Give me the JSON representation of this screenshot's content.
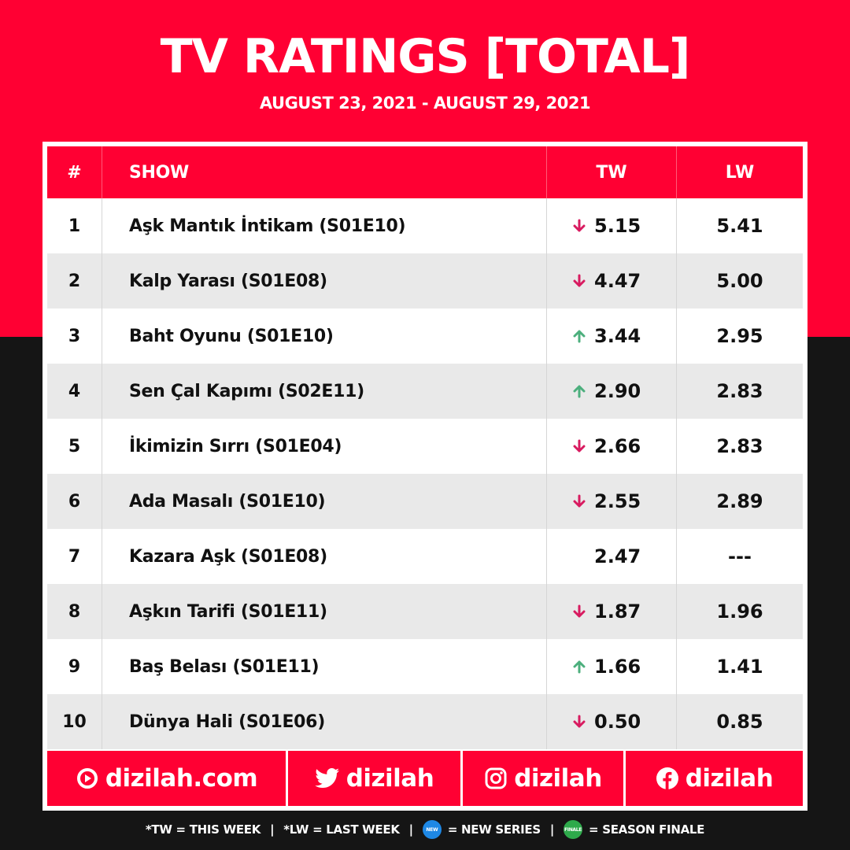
{
  "header": {
    "title": "TV RATINGS [TOTAL]",
    "subtitle": "AUGUST 23, 2021 - AUGUST 29, 2021"
  },
  "table": {
    "columns": {
      "num": "#",
      "show": "SHOW",
      "tw": "TW",
      "lw": "LW"
    },
    "rows": [
      {
        "rank": "1",
        "show": "Aşk Mantık İntikam (S01E10)",
        "trend": "down",
        "tw": "5.15",
        "lw": "5.41"
      },
      {
        "rank": "2",
        "show": "Kalp Yarası (S01E08)",
        "trend": "down",
        "tw": "4.47",
        "lw": "5.00"
      },
      {
        "rank": "3",
        "show": "Baht Oyunu (S01E10)",
        "trend": "up",
        "tw": "3.44",
        "lw": "2.95"
      },
      {
        "rank": "4",
        "show": "Sen Çal Kapımı (S02E11)",
        "trend": "up",
        "tw": "2.90",
        "lw": "2.83"
      },
      {
        "rank": "5",
        "show": "İkimizin Sırrı (S01E04)",
        "trend": "down",
        "tw": "2.66",
        "lw": "2.83"
      },
      {
        "rank": "6",
        "show": "Ada Masalı (S01E10)",
        "trend": "down",
        "tw": "2.55",
        "lw": "2.89"
      },
      {
        "rank": "7",
        "show": "Kazara Aşk (S01E08)",
        "trend": "none",
        "tw": "2.47",
        "lw": "---"
      },
      {
        "rank": "8",
        "show": "Aşkın Tarifi (S01E11)",
        "trend": "down",
        "tw": "1.87",
        "lw": "1.96"
      },
      {
        "rank": "9",
        "show": "Baş Belası (S01E11)",
        "trend": "up",
        "tw": "1.66",
        "lw": "1.41"
      },
      {
        "rank": "10",
        "show": "Dünya Hali (S01E06)",
        "trend": "down",
        "tw": "0.50",
        "lw": "0.85"
      }
    ]
  },
  "footer": {
    "website": "dizilah.com",
    "twitter": "dizilah",
    "instagram": "dizilah",
    "facebook": "dizilah"
  },
  "legend": {
    "tw": "*TW = THIS WEEK",
    "lw": "*LW = LAST WEEK",
    "new_badge": "NEW",
    "new": "= NEW SERIES",
    "finale_badge": "FINALE",
    "finale": "= SEASON FINALE",
    "separator": "|"
  },
  "colors": {
    "brand_red": "#ff0033",
    "down": "#d81b60",
    "up": "#4caf7d"
  }
}
